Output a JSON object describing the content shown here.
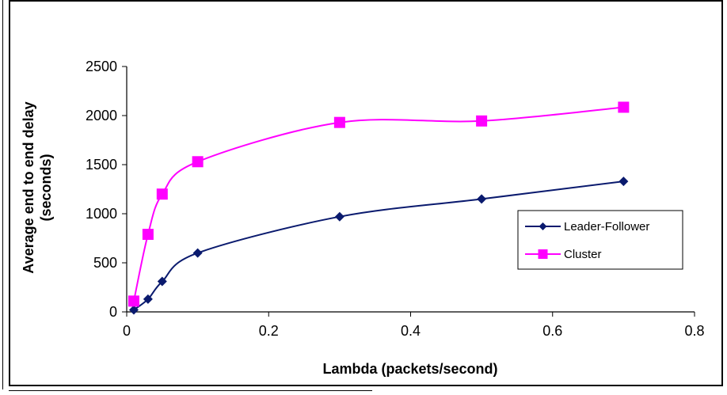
{
  "chart_data": {
    "type": "line",
    "title": "",
    "xlabel": "Lambda  (packets/second)",
    "ylabel": [
      "Average  end to end delay",
      "(seconds)"
    ],
    "xlim": [
      0,
      0.8
    ],
    "ylim": [
      0,
      2500
    ],
    "x_ticks": [
      "0",
      "0.2",
      "0.4",
      "0.6",
      "0.8"
    ],
    "y_ticks": [
      "0",
      "500",
      "1000",
      "1500",
      "2000",
      "2500"
    ],
    "grid": false,
    "legend_position": "right",
    "series": [
      {
        "name": "Leader-Follower",
        "color": "#0a1a6e",
        "marker": "diamond",
        "x": [
          0.01,
          0.03,
          0.05,
          0.1,
          0.3,
          0.5,
          0.7
        ],
        "y": [
          20,
          130,
          310,
          600,
          970,
          1150,
          1330
        ]
      },
      {
        "name": "Cluster",
        "color": "#ff00ff",
        "marker": "square",
        "x": [
          0.01,
          0.03,
          0.05,
          0.1,
          0.3,
          0.5,
          0.7
        ],
        "y": [
          110,
          790,
          1200,
          1530,
          1930,
          1945,
          2085
        ]
      }
    ]
  }
}
